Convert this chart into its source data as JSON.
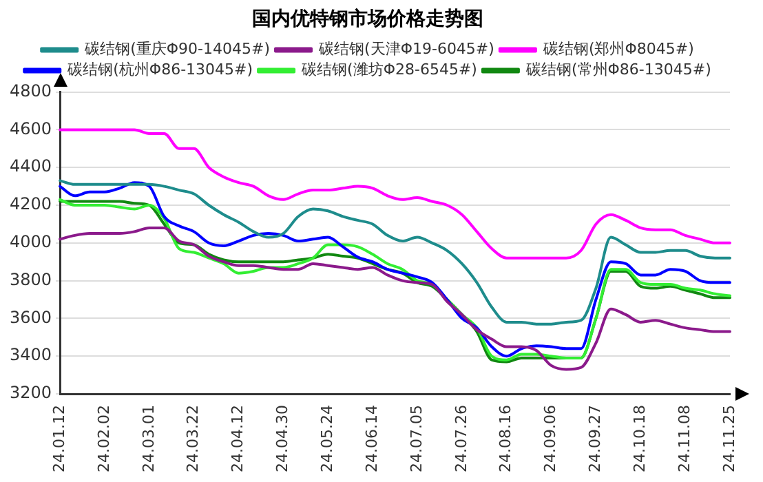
{
  "chart_data": {
    "type": "line",
    "title": "国内优特钢市场价格走势图",
    "categories": [
      "24.01.12",
      null,
      null,
      "24.02.02",
      null,
      null,
      "24.03.01",
      null,
      null,
      "24.03.22",
      null,
      null,
      "24.04.12",
      null,
      null,
      "24.04.30",
      null,
      null,
      "24.05.24",
      null,
      null,
      "24.06.14",
      null,
      null,
      "24.07.05",
      null,
      null,
      "24.07.26",
      null,
      null,
      "24.08.16",
      null,
      null,
      "24.09.06",
      null,
      null,
      "24.09.27",
      null,
      null,
      "24.10.18",
      null,
      null,
      "24.11.08",
      null,
      null,
      "24.11.25"
    ],
    "series": [
      {
        "name": "碳结钢(重庆Φ90-14045#)",
        "color": "#1e8c8c",
        "values": [
          4330,
          4310,
          4310,
          4310,
          4310,
          4310,
          4310,
          4300,
          4280,
          4260,
          4200,
          4150,
          4110,
          4060,
          4030,
          4050,
          4140,
          4180,
          4170,
          4140,
          4120,
          4100,
          4040,
          4010,
          4030,
          4000,
          3960,
          3890,
          3790,
          3660,
          3580,
          3580,
          3570,
          3570,
          3580,
          3590,
          3760,
          4030,
          3990,
          3950,
          3950,
          3960,
          3960,
          3930,
          3920,
          3920
        ]
      },
      {
        "name": "碳结钢(天津Φ19-6045#)",
        "color": "#8b1a8b",
        "values": [
          4020,
          4040,
          4050,
          4050,
          4050,
          4060,
          4080,
          4080,
          4010,
          3990,
          3930,
          3900,
          3880,
          3880,
          3870,
          3860,
          3860,
          3890,
          3880,
          3870,
          3860,
          3870,
          3830,
          3800,
          3790,
          3780,
          3690,
          3620,
          3540,
          3490,
          3450,
          3450,
          3430,
          3350,
          3330,
          3340,
          3470,
          3650,
          3620,
          3580,
          3590,
          3570,
          3550,
          3540,
          3530,
          3530
        ]
      },
      {
        "name": "碳结钢(郑州Φ8045#)",
        "color": "#ff00ff",
        "values": [
          4600,
          4600,
          4600,
          4600,
          4600,
          4600,
          4580,
          4580,
          4500,
          4500,
          4400,
          4350,
          4320,
          4300,
          4250,
          4230,
          4260,
          4280,
          4280,
          4290,
          4300,
          4290,
          4250,
          4230,
          4240,
          4220,
          4200,
          4150,
          4060,
          3970,
          3920,
          3920,
          3920,
          3920,
          3920,
          3960,
          4100,
          4150,
          4120,
          4080,
          4070,
          4070,
          4040,
          4020,
          4000,
          4000
        ]
      },
      {
        "name": "碳结钢(杭州Φ86-13045#)",
        "color": "#0000ff",
        "values": [
          4300,
          4250,
          4270,
          4270,
          4290,
          4320,
          4300,
          4140,
          4090,
          4060,
          4000,
          3985,
          4010,
          4040,
          4050,
          4040,
          4010,
          4020,
          4030,
          3980,
          3925,
          3900,
          3860,
          3840,
          3820,
          3790,
          3700,
          3600,
          3550,
          3450,
          3400,
          3440,
          3455,
          3450,
          3440,
          3440,
          3700,
          3900,
          3890,
          3830,
          3830,
          3860,
          3850,
          3800,
          3790,
          3790
        ]
      },
      {
        "name": "碳结钢(潍坊Φ28-6545#)",
        "color": "#33ee33",
        "values": [
          4230,
          4200,
          4200,
          4200,
          4190,
          4180,
          4200,
          4130,
          3970,
          3950,
          3920,
          3890,
          3840,
          3850,
          3870,
          3870,
          3890,
          3920,
          3990,
          3990,
          3980,
          3940,
          3890,
          3860,
          3800,
          3780,
          3700,
          3620,
          3550,
          3400,
          3380,
          3410,
          3410,
          3400,
          3390,
          3390,
          3600,
          3860,
          3860,
          3790,
          3780,
          3780,
          3760,
          3750,
          3730,
          3720
        ]
      },
      {
        "name": "碳结钢(常州Φ86-13045#)",
        "color": "#118811",
        "values": [
          4220,
          4220,
          4220,
          4220,
          4220,
          4210,
          4200,
          4100,
          4000,
          3990,
          3940,
          3910,
          3900,
          3900,
          3900,
          3900,
          3910,
          3920,
          3940,
          3930,
          3920,
          3890,
          3860,
          3840,
          3790,
          3770,
          3700,
          3620,
          3530,
          3380,
          3370,
          3390,
          3390,
          3390,
          3390,
          3390,
          3600,
          3850,
          3850,
          3770,
          3760,
          3770,
          3750,
          3730,
          3710,
          3710
        ]
      }
    ],
    "ylim": [
      3200,
      4800
    ],
    "yticks": [
      3200,
      3400,
      3600,
      3800,
      4000,
      4200,
      4400,
      4600,
      4800
    ],
    "grid": "y",
    "legend": "top",
    "marker": "none",
    "line_style": "solid"
  }
}
